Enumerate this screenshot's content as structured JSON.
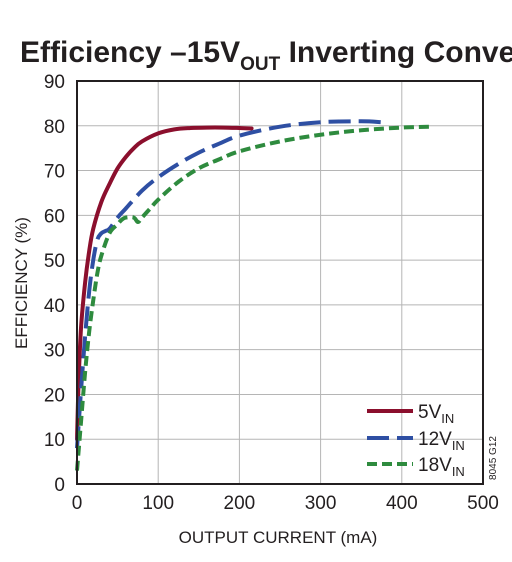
{
  "chart_data": {
    "type": "line",
    "title": {
      "pre": "Efficiency –15V",
      "sub": "OUT",
      "post": " Inverting Converter"
    },
    "xlabel": "OUTPUT CURRENT (mA)",
    "ylabel": "EFFICIENCY (%)",
    "xlim": [
      0,
      500
    ],
    "ylim": [
      0,
      90
    ],
    "xticks": [
      0,
      100,
      200,
      300,
      400,
      500
    ],
    "yticks": [
      0,
      10,
      20,
      30,
      40,
      50,
      60,
      70,
      80,
      90
    ],
    "grid": true,
    "legend_position": "bottom-right",
    "code": "8045 G12",
    "series": [
      {
        "name": "5V",
        "name_sub": "IN",
        "color": "#8b0f2d",
        "dash": "solid",
        "x": [
          0,
          2,
          5,
          10,
          15,
          20,
          30,
          40,
          50,
          60,
          70,
          80,
          100,
          120,
          140,
          160,
          180,
          200,
          215
        ],
        "y": [
          10,
          23,
          35,
          45,
          52,
          57,
          63,
          67,
          70.5,
          73,
          75,
          76.5,
          78.3,
          79.2,
          79.5,
          79.6,
          79.6,
          79.5,
          79.4
        ]
      },
      {
        "name": "12V",
        "name_sub": "IN",
        "color": "#2e4fa3",
        "dash": "dashed",
        "x": [
          0,
          5,
          10,
          15,
          20,
          25,
          30,
          35,
          40,
          50,
          60,
          80,
          100,
          125,
          150,
          175,
          200,
          250,
          300,
          350,
          375
        ],
        "y": [
          8,
          21,
          33,
          43,
          50,
          54.5,
          56,
          56.5,
          57,
          59.5,
          61.5,
          65.5,
          68.5,
          71.5,
          74,
          76,
          77.8,
          79.8,
          80.8,
          81,
          80.8
        ]
      },
      {
        "name": "18V",
        "name_sub": "IN",
        "color": "#2e8b3e",
        "dash": "dashed",
        "x": [
          0,
          5,
          10,
          15,
          20,
          25,
          30,
          40,
          50,
          55,
          60,
          70,
          75,
          80,
          90,
          100,
          125,
          150,
          175,
          200,
          250,
          300,
          350,
          400,
          435
        ],
        "y": [
          3,
          14,
          25,
          34,
          41,
          47,
          51,
          56,
          58,
          59,
          59.5,
          59.5,
          58.5,
          59.5,
          61.5,
          63.5,
          67.5,
          70.5,
          72.5,
          74.3,
          76.5,
          78,
          79,
          79.6,
          79.8
        ]
      }
    ]
  }
}
